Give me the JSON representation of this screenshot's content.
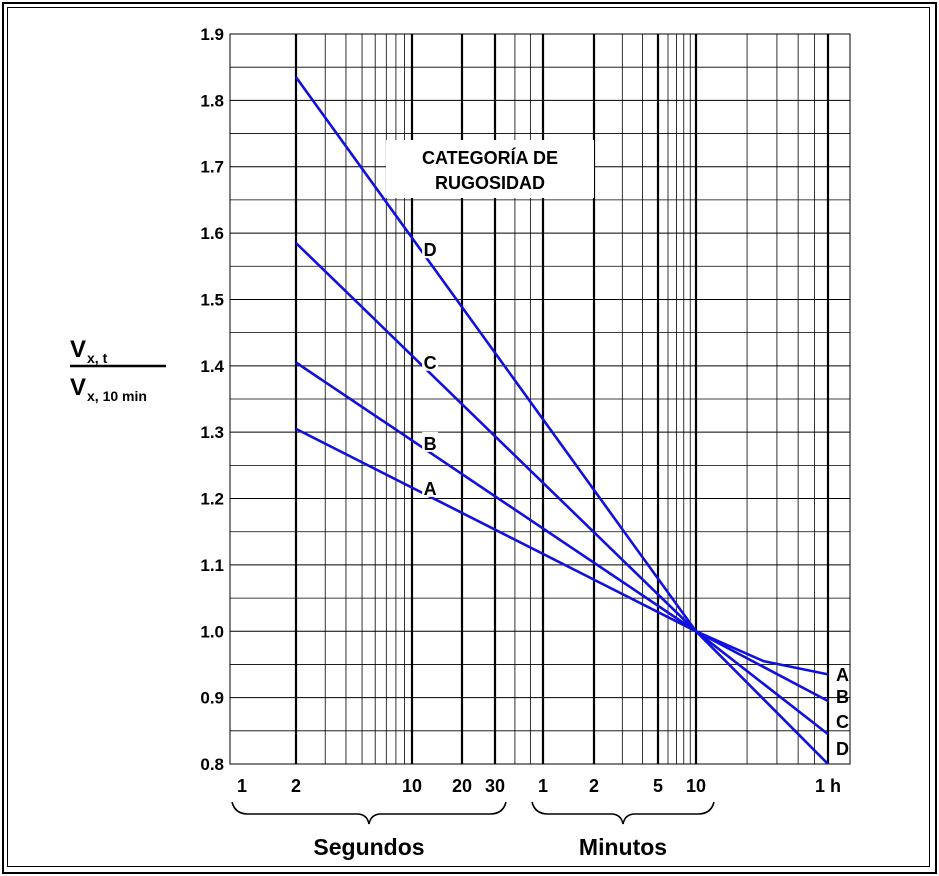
{
  "chart_data": {
    "type": "line",
    "title": "",
    "annotation": [
      "CATEGORÍA DE",
      "RUGOSIDAD"
    ],
    "ylabel": {
      "numerator": {
        "main": "V",
        "sub": "x, t"
      },
      "denominator": {
        "main": "V",
        "sub": "x, 10 min"
      }
    },
    "ylim": [
      0.8,
      1.9
    ],
    "yticks": [
      "0.8",
      "0.9",
      "1.0",
      "1.1",
      "1.2",
      "1.3",
      "1.4",
      "1.5",
      "1.6",
      "1.7",
      "1.8",
      "1.9"
    ],
    "xscale": "log",
    "xunit": "seconds",
    "xlim_seconds": [
      1,
      3600
    ],
    "xticks": [
      {
        "label": "1",
        "seconds": 1
      },
      {
        "label": "2",
        "seconds": 2
      },
      {
        "label": "10",
        "seconds": 10
      },
      {
        "label": "20",
        "seconds": 20
      },
      {
        "label": "30",
        "seconds": 30
      },
      {
        "label": "1",
        "seconds": 60
      },
      {
        "label": "2",
        "seconds": 120
      },
      {
        "label": "5",
        "seconds": 300
      },
      {
        "label": "10",
        "seconds": 600
      },
      {
        "label": "1 h",
        "seconds": 3600
      }
    ],
    "x_groups": [
      {
        "label": "Segundos",
        "from_seconds": 1,
        "to_seconds": 40
      },
      {
        "label": "Minutos",
        "from_seconds": 60,
        "to_seconds": 900
      }
    ],
    "grid": true,
    "line_color": "#1010e0",
    "series": [
      {
        "name": "A",
        "x_seconds": [
          2,
          600,
          1500,
          3600
        ],
        "y": [
          1.305,
          1.0,
          0.955,
          0.935
        ]
      },
      {
        "name": "B",
        "x_seconds": [
          2,
          600,
          3600
        ],
        "y": [
          1.405,
          1.0,
          0.895
        ]
      },
      {
        "name": "C",
        "x_seconds": [
          2,
          600,
          3600
        ],
        "y": [
          1.585,
          1.0,
          0.845
        ]
      },
      {
        "name": "D",
        "x_seconds": [
          2,
          600,
          3600
        ],
        "y": [
          1.835,
          1.0,
          0.8
        ]
      }
    ]
  }
}
